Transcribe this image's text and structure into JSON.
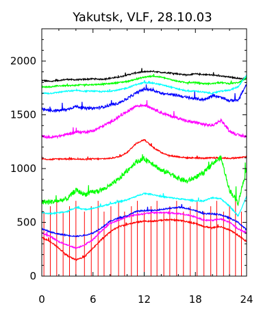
{
  "chart_data": {
    "type": "line",
    "title": "Yakutsk, VLF, 28.10.03",
    "xlabel": "",
    "ylabel": "",
    "xlim": [
      0,
      24
    ],
    "ylim": [
      0,
      2300
    ],
    "x_ticks": [
      0,
      6,
      12,
      18,
      24
    ],
    "y_ticks": [
      0,
      500,
      1000,
      1500,
      2000
    ],
    "grid": false,
    "series": [
      {
        "color": "#000000",
        "points": [
          [
            0,
            1820
          ],
          [
            1,
            1810
          ],
          [
            2,
            1820
          ],
          [
            3,
            1830
          ],
          [
            4,
            1825
          ],
          [
            5,
            1830
          ],
          [
            6,
            1835
          ],
          [
            7,
            1830
          ],
          [
            8,
            1840
          ],
          [
            9,
            1850
          ],
          [
            10,
            1870
          ],
          [
            11,
            1890
          ],
          [
            12,
            1900
          ],
          [
            13,
            1905
          ],
          [
            14,
            1895
          ],
          [
            15,
            1890
          ],
          [
            16,
            1880
          ],
          [
            17,
            1870
          ],
          [
            18,
            1880
          ],
          [
            19,
            1875
          ],
          [
            20,
            1870
          ],
          [
            21,
            1860
          ],
          [
            22,
            1850
          ],
          [
            23,
            1840
          ],
          [
            24,
            1830
          ]
        ]
      },
      {
        "color": "#00ff00",
        "points": [
          [
            0,
            1760
          ],
          [
            1,
            1760
          ],
          [
            2,
            1770
          ],
          [
            3,
            1770
          ],
          [
            4,
            1775
          ],
          [
            5,
            1780
          ],
          [
            6,
            1780
          ],
          [
            7,
            1785
          ],
          [
            8,
            1790
          ],
          [
            9,
            1800
          ],
          [
            10,
            1810
          ],
          [
            11,
            1830
          ],
          [
            12,
            1850
          ],
          [
            13,
            1860
          ],
          [
            14,
            1850
          ],
          [
            15,
            1830
          ],
          [
            16,
            1810
          ],
          [
            17,
            1800
          ],
          [
            18,
            1800
          ],
          [
            19,
            1790
          ],
          [
            20,
            1790
          ],
          [
            21,
            1800
          ],
          [
            22,
            1790
          ],
          [
            23,
            1800
          ],
          [
            24,
            1840
          ]
        ]
      },
      {
        "color": "#00ffff",
        "points": [
          [
            0,
            1700
          ],
          [
            1,
            1700
          ],
          [
            2,
            1710
          ],
          [
            3,
            1720
          ],
          [
            4,
            1725
          ],
          [
            5,
            1720
          ],
          [
            6,
            1720
          ],
          [
            7,
            1715
          ],
          [
            8,
            1720
          ],
          [
            9,
            1730
          ],
          [
            10,
            1750
          ],
          [
            11,
            1780
          ],
          [
            12,
            1800
          ],
          [
            13,
            1795
          ],
          [
            14,
            1780
          ],
          [
            15,
            1760
          ],
          [
            16,
            1740
          ],
          [
            17,
            1720
          ],
          [
            18,
            1720
          ],
          [
            19,
            1710
          ],
          [
            20,
            1700
          ],
          [
            21,
            1720
          ],
          [
            22,
            1730
          ],
          [
            23,
            1760
          ],
          [
            24,
            1870
          ]
        ]
      },
      {
        "color": "#0000ff",
        "points": [
          [
            0,
            1550
          ],
          [
            1,
            1540
          ],
          [
            2,
            1540
          ],
          [
            3,
            1550
          ],
          [
            4,
            1580
          ],
          [
            5,
            1560
          ],
          [
            6,
            1560
          ],
          [
            7,
            1570
          ],
          [
            8,
            1590
          ],
          [
            9,
            1610
          ],
          [
            10,
            1650
          ],
          [
            11,
            1700
          ],
          [
            12,
            1740
          ],
          [
            13,
            1730
          ],
          [
            14,
            1700
          ],
          [
            15,
            1690
          ],
          [
            16,
            1680
          ],
          [
            17,
            1660
          ],
          [
            18,
            1650
          ],
          [
            19,
            1640
          ],
          [
            20,
            1680
          ],
          [
            21,
            1660
          ],
          [
            22,
            1630
          ],
          [
            23,
            1640
          ],
          [
            24,
            1780
          ]
        ]
      },
      {
        "color": "#ff00ff",
        "points": [
          [
            0,
            1300
          ],
          [
            1,
            1290
          ],
          [
            2,
            1300
          ],
          [
            3,
            1320
          ],
          [
            4,
            1340
          ],
          [
            5,
            1340
          ],
          [
            6,
            1350
          ],
          [
            7,
            1390
          ],
          [
            8,
            1430
          ],
          [
            9,
            1480
          ],
          [
            10,
            1530
          ],
          [
            11,
            1580
          ],
          [
            12,
            1590
          ],
          [
            13,
            1560
          ],
          [
            14,
            1520
          ],
          [
            15,
            1490
          ],
          [
            16,
            1470
          ],
          [
            17,
            1440
          ],
          [
            18,
            1430
          ],
          [
            19,
            1410
          ],
          [
            20,
            1400
          ],
          [
            21,
            1450
          ],
          [
            22,
            1350
          ],
          [
            23,
            1310
          ],
          [
            24,
            1300
          ]
        ]
      },
      {
        "color": "#ff0000",
        "points": [
          [
            0,
            1090
          ],
          [
            1,
            1085
          ],
          [
            2,
            1090
          ],
          [
            3,
            1090
          ],
          [
            4,
            1090
          ],
          [
            5,
            1085
          ],
          [
            6,
            1090
          ],
          [
            7,
            1090
          ],
          [
            8,
            1095
          ],
          [
            9,
            1110
          ],
          [
            10,
            1150
          ],
          [
            11,
            1230
          ],
          [
            12,
            1270
          ],
          [
            13,
            1200
          ],
          [
            14,
            1150
          ],
          [
            15,
            1120
          ],
          [
            16,
            1110
          ],
          [
            17,
            1100
          ],
          [
            18,
            1100
          ],
          [
            19,
            1095
          ],
          [
            20,
            1100
          ],
          [
            21,
            1100
          ],
          [
            22,
            1095
          ],
          [
            23,
            1100
          ],
          [
            24,
            1110
          ]
        ]
      },
      {
        "color": "#00ff00",
        "points": [
          [
            0,
            690
          ],
          [
            1,
            690
          ],
          [
            2,
            700
          ],
          [
            3,
            720
          ],
          [
            4,
            800
          ],
          [
            5,
            760
          ],
          [
            6,
            780
          ],
          [
            7,
            800
          ],
          [
            8,
            840
          ],
          [
            9,
            900
          ],
          [
            10,
            980
          ],
          [
            11,
            1060
          ],
          [
            12,
            1090
          ],
          [
            13,
            1050
          ],
          [
            14,
            980
          ],
          [
            15,
            960
          ],
          [
            16,
            910
          ],
          [
            17,
            880
          ],
          [
            18,
            920
          ],
          [
            19,
            960
          ],
          [
            20,
            1050
          ],
          [
            21,
            1100
          ],
          [
            22,
            800
          ],
          [
            23,
            680
          ],
          [
            24,
            1000
          ]
        ]
      },
      {
        "color": "#00ffff",
        "points": [
          [
            0,
            590
          ],
          [
            1,
            580
          ],
          [
            2,
            590
          ],
          [
            3,
            600
          ],
          [
            4,
            640
          ],
          [
            5,
            620
          ],
          [
            6,
            630
          ],
          [
            7,
            650
          ],
          [
            8,
            670
          ],
          [
            9,
            690
          ],
          [
            10,
            710
          ],
          [
            11,
            740
          ],
          [
            12,
            770
          ],
          [
            13,
            760
          ],
          [
            14,
            740
          ],
          [
            15,
            730
          ],
          [
            16,
            720
          ],
          [
            17,
            710
          ],
          [
            18,
            700
          ],
          [
            19,
            700
          ],
          [
            20,
            730
          ],
          [
            21,
            720
          ],
          [
            22,
            650
          ],
          [
            23,
            560
          ],
          [
            24,
            740
          ]
        ]
      },
      {
        "color": "#0000ff",
        "points": [
          [
            0,
            440
          ],
          [
            1,
            410
          ],
          [
            2,
            390
          ],
          [
            3,
            380
          ],
          [
            4,
            370
          ],
          [
            5,
            380
          ],
          [
            6,
            400
          ],
          [
            7,
            450
          ],
          [
            8,
            510
          ],
          [
            9,
            540
          ],
          [
            10,
            560
          ],
          [
            11,
            600
          ],
          [
            12,
            610
          ],
          [
            13,
            610
          ],
          [
            14,
            620
          ],
          [
            15,
            630
          ],
          [
            16,
            640
          ],
          [
            17,
            630
          ],
          [
            18,
            610
          ],
          [
            19,
            580
          ],
          [
            20,
            580
          ],
          [
            21,
            570
          ],
          [
            22,
            540
          ],
          [
            23,
            500
          ],
          [
            24,
            430
          ]
        ]
      },
      {
        "color": "#ff00ff",
        "points": [
          [
            0,
            400
          ],
          [
            1,
            370
          ],
          [
            2,
            320
          ],
          [
            3,
            290
          ],
          [
            4,
            260
          ],
          [
            5,
            290
          ],
          [
            6,
            340
          ],
          [
            7,
            420
          ],
          [
            8,
            490
          ],
          [
            9,
            520
          ],
          [
            10,
            550
          ],
          [
            11,
            570
          ],
          [
            12,
            580
          ],
          [
            13,
            590
          ],
          [
            14,
            590
          ],
          [
            15,
            590
          ],
          [
            16,
            580
          ],
          [
            17,
            570
          ],
          [
            18,
            550
          ],
          [
            19,
            520
          ],
          [
            20,
            520
          ],
          [
            21,
            530
          ],
          [
            22,
            500
          ],
          [
            23,
            440
          ],
          [
            24,
            400
          ]
        ]
      },
      {
        "color": "#ff0000",
        "points": [
          [
            0,
            360
          ],
          [
            1,
            320
          ],
          [
            2,
            260
          ],
          [
            3,
            190
          ],
          [
            4,
            150
          ],
          [
            5,
            180
          ],
          [
            6,
            260
          ],
          [
            7,
            340
          ],
          [
            8,
            410
          ],
          [
            9,
            460
          ],
          [
            10,
            480
          ],
          [
            11,
            500
          ],
          [
            12,
            510
          ],
          [
            13,
            510
          ],
          [
            14,
            520
          ],
          [
            15,
            525
          ],
          [
            16,
            520
          ],
          [
            17,
            505
          ],
          [
            18,
            490
          ],
          [
            19,
            460
          ],
          [
            20,
            450
          ],
          [
            21,
            460
          ],
          [
            22,
            430
          ],
          [
            23,
            380
          ],
          [
            24,
            320
          ]
        ]
      }
    ],
    "annotations": {
      "spike_color": "#ff0000",
      "spike_x": [
        0.25,
        1.0,
        1.75,
        2.5,
        3.25,
        4.0,
        5.0,
        5.8,
        6.6,
        7.3,
        8.1,
        9.0,
        9.7,
        10.5,
        11.2,
        12.0,
        12.8,
        13.5,
        14.3,
        15.0,
        15.8,
        16.6,
        17.4,
        18.2,
        19.0,
        19.8,
        20.5,
        21.3,
        22.0,
        22.7,
        23.4
      ]
    }
  }
}
